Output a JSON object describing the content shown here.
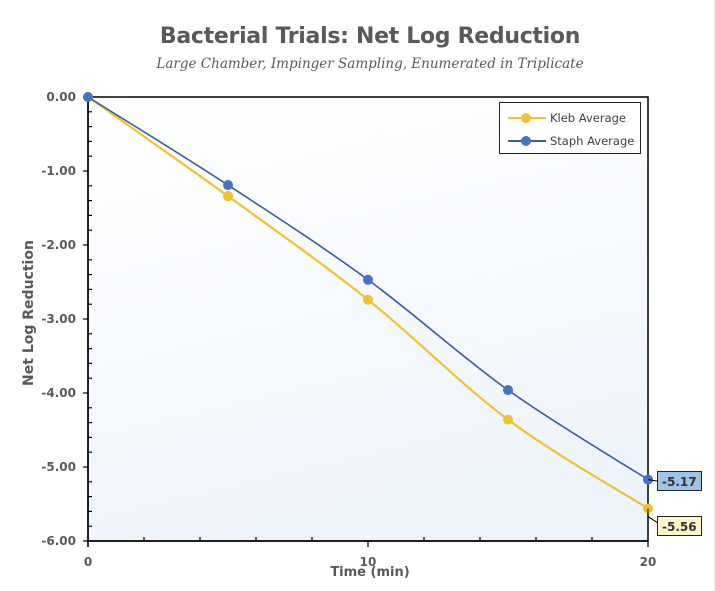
{
  "chart_data": {
    "type": "line",
    "title": "Bacterial Trials: Net Log Reduction",
    "subtitle": "Large Chamber, Impinger Sampling, Enumerated in Triplicate",
    "xlabel": "Time (min)",
    "ylabel": "Net Log Reduction",
    "x": [
      0,
      5,
      10,
      15,
      20
    ],
    "xlim": [
      0,
      20
    ],
    "ylim": [
      -6,
      0
    ],
    "x_ticks": [
      "0",
      "10",
      "20"
    ],
    "x_minor_tick_step": 2,
    "y_ticks": [
      "0.00",
      "-1.00",
      "-2.00",
      "-3.00",
      "-4.00",
      "-5.00",
      "-6.00"
    ],
    "y_minor_tick_step": 0.2,
    "grid": false,
    "legend_position": "top-right inside",
    "smoothed": true,
    "series": [
      {
        "name": "Kleb Average",
        "color": "#F2C12E",
        "values": [
          0.0,
          -1.34,
          -2.74,
          -4.36,
          -5.56
        ],
        "end_label": "-5.56",
        "end_label_bg": "#FFF5CC"
      },
      {
        "name": "Staph Average",
        "color": "#4472C4",
        "line_color": "#3B5AA0",
        "values": [
          0.0,
          -1.19,
          -2.47,
          -3.96,
          -5.17
        ],
        "end_label": "-5.17",
        "end_label_bg": "#9DC3E6"
      }
    ]
  },
  "legend": {
    "items": [
      {
        "label": "Kleb Average"
      },
      {
        "label": "Staph Average"
      }
    ]
  },
  "data_labels": {
    "staph": "-5.17",
    "kleb": "-5.56"
  },
  "colors": {
    "plot_bg_top": "#FFFFFF",
    "plot_bg_bottom": "#EEF4FB",
    "axis": "#000000",
    "text": "#595959"
  }
}
